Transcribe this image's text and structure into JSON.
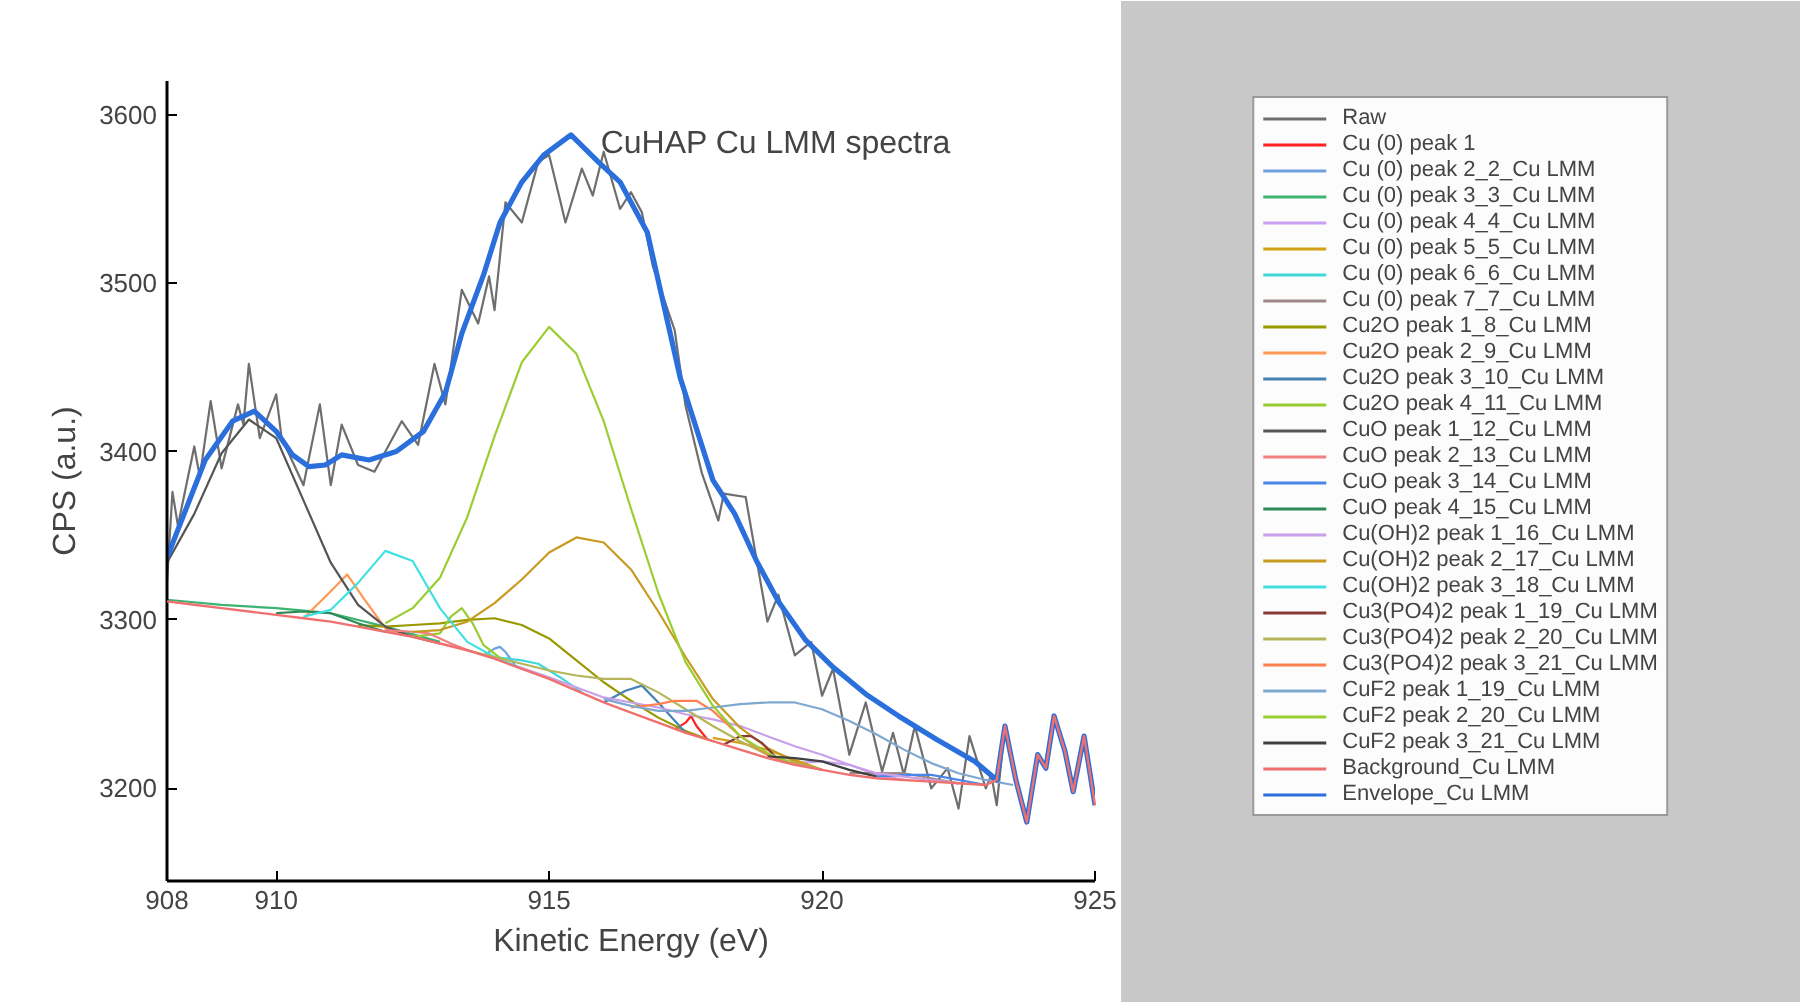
{
  "chart_data": {
    "type": "line",
    "title": "CuHAP Cu LMM spectra",
    "xlabel": "Kinetic Energy (eV)",
    "ylabel": "CPS (a.u.)",
    "xlim": [
      908,
      925
    ],
    "ylim": [
      3145,
      3620
    ],
    "xticks": [
      908,
      910,
      915,
      920,
      925
    ],
    "yticks": [
      3200,
      3300,
      3400,
      3500,
      3600
    ],
    "grid": false,
    "legend": "right",
    "line_style": "solid",
    "series": [
      {
        "name": "Raw",
        "color": "#6e6e6e",
        "x": [
          908.0,
          908.1,
          908.2,
          908.5,
          908.6,
          908.8,
          909.0,
          909.3,
          909.4,
          909.5,
          909.7,
          910.0,
          910.1,
          910.5,
          910.8,
          911.0,
          911.2,
          911.5,
          911.8,
          912.3,
          912.6,
          912.9,
          913.1,
          913.4,
          913.7,
          913.9,
          914.0,
          914.2,
          914.5,
          914.8,
          915.0,
          915.3,
          915.6,
          915.8,
          916.0,
          916.3,
          916.5,
          916.7,
          916.9,
          917.3,
          917.5,
          917.8,
          918.1,
          918.2,
          918.6,
          919.0,
          919.2,
          919.5,
          919.8,
          920.0,
          920.2,
          920.5,
          920.8,
          921.1,
          921.3,
          921.5,
          921.7,
          922.0,
          922.3,
          922.5,
          922.7,
          923.0,
          923.1,
          923.2,
          923.35,
          923.55,
          923.75,
          923.95,
          924.1,
          924.25,
          924.45,
          924.6,
          924.8,
          925.0
        ],
        "values": [
          3323,
          3376,
          3356,
          3403,
          3385,
          3430,
          3390,
          3428,
          3416,
          3452,
          3408,
          3434,
          3408,
          3380,
          3428,
          3380,
          3416,
          3392,
          3388,
          3418,
          3404,
          3452,
          3428,
          3496,
          3476,
          3504,
          3484,
          3548,
          3536,
          3572,
          3576,
          3536,
          3568,
          3552,
          3578,
          3544,
          3554,
          3542,
          3510,
          3472,
          3427,
          3387,
          3359,
          3375,
          3373,
          3299,
          3315,
          3279,
          3287,
          3255,
          3271,
          3220,
          3251,
          3210,
          3233,
          3208,
          3237,
          3200,
          3212,
          3188,
          3231,
          3200,
          3208,
          3190,
          3237,
          3205,
          3180,
          3220,
          3212,
          3243,
          3222,
          3198,
          3231,
          3190
        ]
      },
      {
        "name": "Cu (0) peak 1",
        "color": "#ff2020",
        "x": [
          917.3,
          917.5,
          917.6,
          917.7,
          917.9
        ],
        "values": [
          3235,
          3239,
          3243,
          3237,
          3229
        ]
      },
      {
        "name": "Cu (0) peak 2_2_Cu LMM",
        "color": "#6fa0e0",
        "x": [
          913.8,
          914.0,
          914.1,
          914.2,
          914.4
        ],
        "values": [
          3279,
          3283,
          3284,
          3281,
          3272
        ]
      },
      {
        "name": "Cu (0) peak 3_3_Cu LMM",
        "color": "#3cb371",
        "x": [
          908,
          909,
          910,
          911,
          912,
          913
        ],
        "values": [
          3312,
          3309,
          3307,
          3304,
          3296,
          3287
        ]
      },
      {
        "name": "Cu (0) peak 4_4_Cu LMM",
        "color": "#c8a0f0",
        "x": [
          919.5,
          920,
          920.5,
          921,
          921.5
        ],
        "values": [
          3215,
          3216,
          3214,
          3208,
          3205
        ]
      },
      {
        "name": "Cu (0) peak 5_5_Cu LMM",
        "color": "#d4a017",
        "x": [
          918,
          918.5,
          919,
          919.5,
          920
        ],
        "values": [
          3230,
          3227,
          3223,
          3217,
          3211
        ]
      },
      {
        "name": "Cu (0) peak 6_6_Cu LMM",
        "color": "#40d8d8",
        "x": [
          914,
          914.5,
          914.8,
          915.2,
          915.6
        ],
        "values": [
          3278,
          3276,
          3274,
          3266,
          3257
        ]
      },
      {
        "name": "Cu (0) peak 7_7_Cu LMM",
        "color": "#a08888",
        "x": [
          920.5,
          921,
          921.5,
          922,
          922.5
        ],
        "values": [
          3209,
          3209,
          3209,
          3206,
          3203
        ]
      },
      {
        "name": "Cu2O peak 1_8_Cu LMM",
        "color": "#999900",
        "x": [
          911.5,
          912,
          912.5,
          913,
          913.5,
          914,
          914.5,
          915,
          915.5,
          916,
          916.5,
          917,
          917.5,
          918
        ],
        "values": [
          3297,
          3296,
          3297,
          3298,
          3300,
          3301,
          3297,
          3289,
          3276,
          3263,
          3252,
          3242,
          3234,
          3228
        ]
      },
      {
        "name": "Cu2O peak 2_9_Cu LMM",
        "color": "#ff9955",
        "x": [
          910.5,
          911,
          911.3,
          911.6,
          912,
          912.5
        ],
        "values": [
          3301,
          3317,
          3327,
          3313,
          3295,
          3290
        ]
      },
      {
        "name": "Cu2O peak 3_10_Cu LMM",
        "color": "#4682b4",
        "x": [
          916,
          916.4,
          916.7,
          917,
          917.5
        ],
        "values": [
          3251,
          3258,
          3261,
          3251,
          3233
        ]
      },
      {
        "name": "Cu2O peak 4_11_Cu LMM",
        "color": "#99cc33",
        "x": [
          912.5,
          913,
          913.2,
          913.4,
          913.6,
          913.8,
          914.2
        ],
        "values": [
          3290,
          3292,
          3302,
          3307,
          3298,
          3285,
          3275
        ]
      },
      {
        "name": "CuO peak 1_12_Cu LMM",
        "color": "#555555",
        "x": [
          908,
          908.5,
          909,
          909.5,
          910,
          910.5,
          911,
          911.5,
          912,
          912.5,
          913
        ],
        "values": [
          3334,
          3363,
          3399,
          3419,
          3408,
          3371,
          3334,
          3309,
          3296,
          3290,
          3286
        ]
      },
      {
        "name": "CuO peak 2_13_Cu LMM",
        "color": "#f08080",
        "x": [
          912,
          912.5,
          912.8,
          913.2,
          913.6
        ],
        "values": [
          3294,
          3293,
          3292,
          3286,
          3281
        ]
      },
      {
        "name": "CuO peak 3_14_Cu LMM",
        "color": "#4a86e8",
        "x": [
          921,
          921.5,
          922,
          922.5,
          923
        ],
        "values": [
          3207,
          3208,
          3208,
          3205,
          3202
        ]
      },
      {
        "name": "CuO peak 4_15_Cu LMM",
        "color": "#2e8b57",
        "x": [
          910,
          910.5,
          911,
          911.5,
          912
        ],
        "values": [
          3304,
          3305,
          3304,
          3298,
          3293
        ]
      },
      {
        "name": "Cu(OH)2 peak 1_16_Cu LMM",
        "color": "#c8a0e8",
        "x": [
          914,
          915,
          916,
          916.5,
          917,
          917.5,
          918,
          918.5,
          919,
          919.5,
          920,
          920.5,
          921,
          921.5,
          922,
          922.5
        ],
        "values": [
          3277,
          3266,
          3254,
          3251,
          3248,
          3244,
          3241,
          3237,
          3231,
          3225,
          3220,
          3214,
          3209,
          3207,
          3205,
          3203
        ]
      },
      {
        "name": "Cu(OH)2 peak 2_17_Cu LMM",
        "color": "#c89a20",
        "x": [
          912.5,
          913,
          913.5,
          914,
          914.5,
          915,
          915.5,
          916,
          916.5,
          917,
          917.5,
          918,
          918.5,
          919,
          919.5,
          920
        ],
        "values": [
          3293,
          3294,
          3299,
          3310,
          3324,
          3340,
          3349,
          3346,
          3330,
          3305,
          3278,
          3253,
          3236,
          3224,
          3216,
          3211
        ]
      },
      {
        "name": "Cu(OH)2 peak 3_18_Cu LMM",
        "color": "#40e0e0",
        "x": [
          910.5,
          911,
          911.5,
          912,
          912.5,
          913,
          913.5,
          914,
          914.5
        ],
        "values": [
          3302,
          3306,
          3322,
          3341,
          3335,
          3307,
          3287,
          3278,
          3271
        ]
      },
      {
        "name": "Cu3(PO4)2 peak 1_19_Cu LMM",
        "color": "#8b3a3a",
        "x": [
          918.2,
          918.5,
          918.7,
          918.9,
          919.2
        ],
        "values": [
          3226,
          3231,
          3231,
          3227,
          3217
        ]
      },
      {
        "name": "Cu3(PO4)2 peak 2_20_Cu LMM",
        "color": "#b5b55a",
        "x": [
          913.5,
          914,
          914.5,
          915,
          915.5,
          916,
          916.5,
          917,
          917.5,
          918,
          918.5,
          919,
          919.5,
          920
        ],
        "values": [
          3282,
          3278,
          3274,
          3270,
          3267,
          3265,
          3265,
          3257,
          3247,
          3237,
          3228,
          3220,
          3215,
          3211
        ]
      },
      {
        "name": "Cu3(PO4)2 peak 3_21_Cu LMM",
        "color": "#ff7f50",
        "x": [
          916.5,
          917,
          917.3,
          917.7,
          918,
          918.5,
          919,
          919.5
        ],
        "values": [
          3248,
          3250,
          3252,
          3252,
          3246,
          3231,
          3220,
          3214
        ]
      },
      {
        "name": "CuF2 peak 1_19_Cu LMM",
        "color": "#7fa8d0",
        "x": [
          916,
          916.5,
          917,
          917.5,
          918,
          918.5,
          919,
          919.5,
          920,
          920.5,
          921,
          921.5,
          922,
          922.5,
          923,
          923.5
        ],
        "values": [
          3253,
          3249,
          3246,
          3246,
          3248,
          3250,
          3251,
          3251,
          3247,
          3240,
          3232,
          3223,
          3215,
          3209,
          3205,
          3202
        ]
      },
      {
        "name": "CuF2 peak 2_20_Cu LMM",
        "color": "#9acd32",
        "x": [
          912,
          912.5,
          913,
          913.5,
          914,
          914.5,
          915,
          915.5,
          916,
          916.5,
          917,
          917.5,
          918,
          918.5,
          919,
          919.5
        ],
        "values": [
          3298,
          3307,
          3325,
          3361,
          3409,
          3453,
          3474,
          3458,
          3418,
          3366,
          3316,
          3275,
          3249,
          3231,
          3221,
          3214
        ]
      },
      {
        "name": "CuF2 peak 3_21_Cu LMM",
        "color": "#404040",
        "x": [
          919,
          919.5,
          920,
          920.5,
          921
        ],
        "values": [
          3219,
          3218,
          3216,
          3211,
          3207
        ]
      },
      {
        "name": "Background_Cu LMM",
        "color": "#f07070",
        "x": [
          908,
          908.5,
          909,
          909.5,
          910,
          910.5,
          911,
          911.5,
          912,
          912.5,
          913,
          913.5,
          914,
          914.5,
          915,
          915.5,
          916,
          916.5,
          917,
          917.5,
          918,
          918.5,
          919,
          919.5,
          920,
          920.5,
          921,
          921.5,
          922,
          922.5,
          923,
          923.2,
          923.35,
          923.55,
          923.75,
          923.95,
          924.1,
          924.25,
          924.45,
          924.6,
          924.8,
          925.0
        ],
        "values": [
          3311,
          3309,
          3307,
          3305,
          3303,
          3301,
          3299,
          3296,
          3293,
          3290,
          3286,
          3282,
          3277,
          3271,
          3265,
          3258,
          3251,
          3245,
          3239,
          3233,
          3228,
          3223,
          3218,
          3214,
          3211,
          3208,
          3206,
          3205,
          3204,
          3203,
          3202,
          3205,
          3237,
          3205,
          3180,
          3220,
          3212,
          3243,
          3222,
          3198,
          3231,
          3190
        ]
      },
      {
        "name": "Envelope_Cu LMM",
        "color": "#2a6fdb",
        "x": [
          908,
          908.7,
          909.2,
          909.6,
          910,
          910.3,
          910.6,
          910.9,
          911.2,
          911.7,
          912.2,
          912.7,
          913.1,
          913.4,
          913.8,
          914.1,
          914.5,
          914.9,
          915.4,
          915.9,
          916.3,
          916.8,
          917.4,
          918.0,
          918.4,
          918.8,
          919.2,
          919.7,
          920.2,
          920.8,
          921.4,
          922.1,
          922.8,
          923.2,
          923.35,
          923.55,
          923.75,
          923.95,
          924.1,
          924.25,
          924.45,
          924.6,
          924.8,
          925.0
        ],
        "values": [
          3337,
          3395,
          3418,
          3424,
          3412,
          3398,
          3391,
          3392,
          3398,
          3395,
          3400,
          3412,
          3435,
          3470,
          3505,
          3536,
          3560,
          3576,
          3588,
          3572,
          3560,
          3530,
          3444,
          3383,
          3363,
          3335,
          3311,
          3288,
          3272,
          3256,
          3243,
          3229,
          3216,
          3205,
          3237,
          3205,
          3180,
          3220,
          3212,
          3243,
          3222,
          3198,
          3231,
          3190
        ]
      }
    ]
  }
}
